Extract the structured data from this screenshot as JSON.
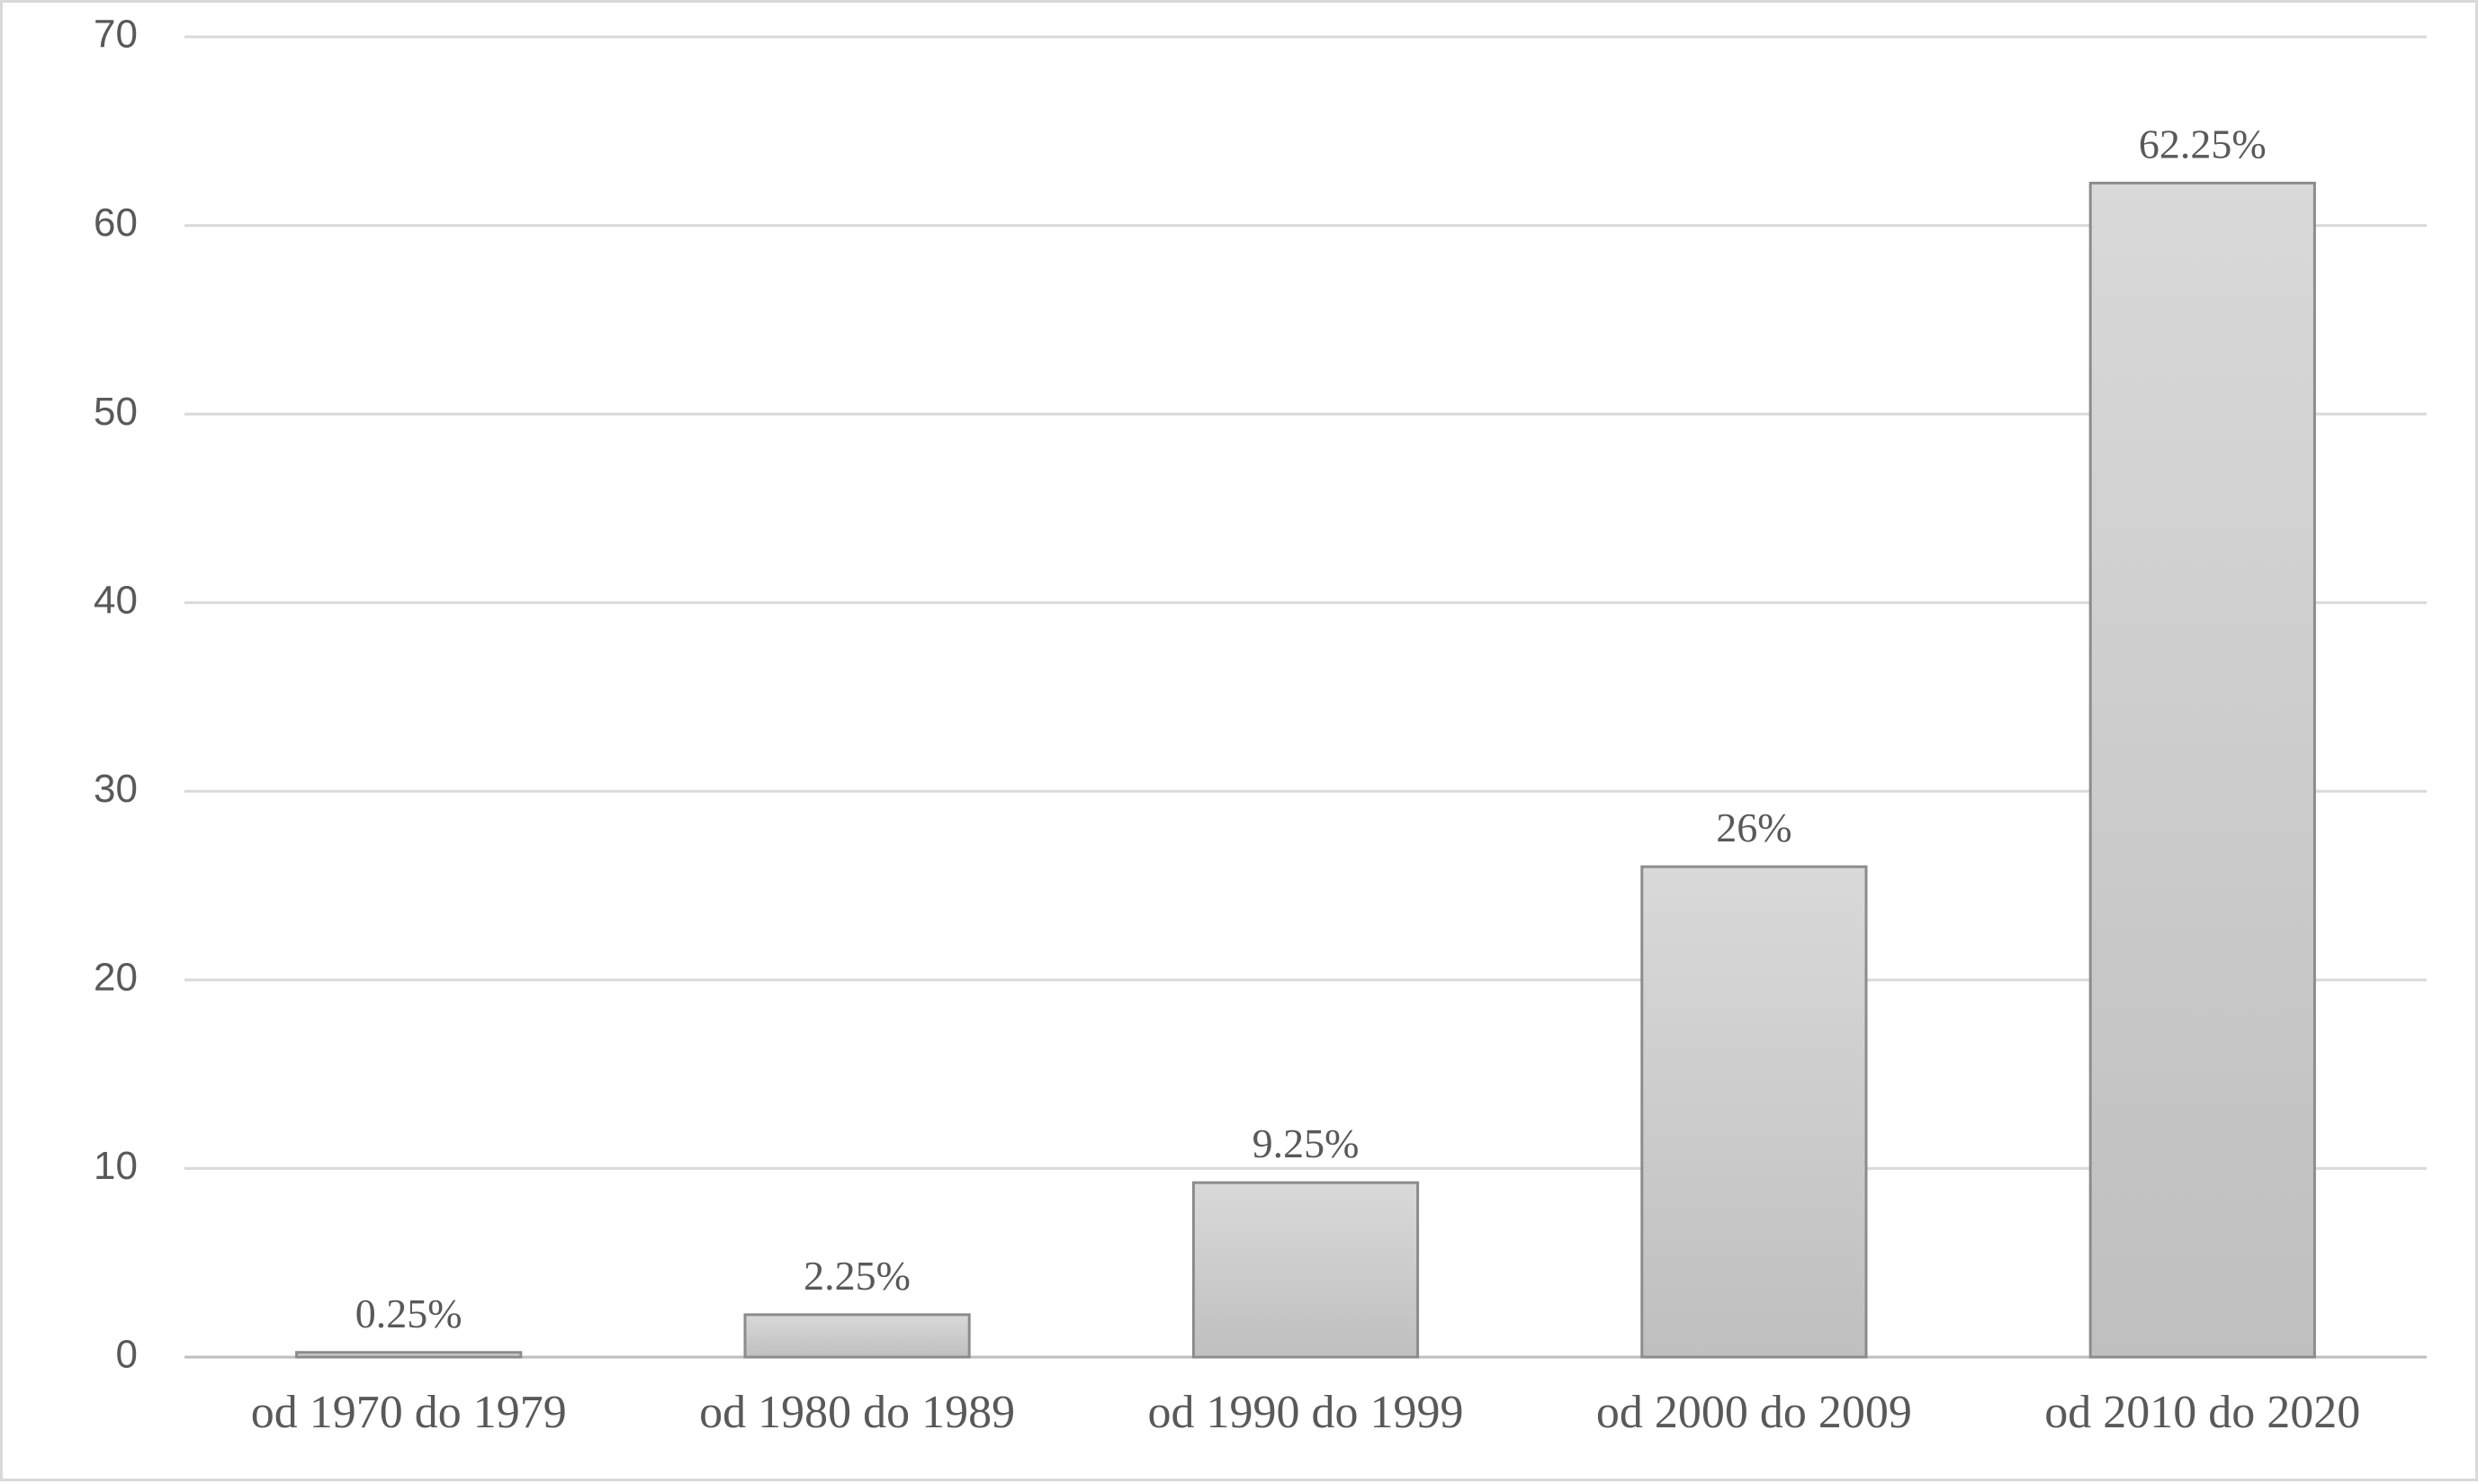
{
  "chart_data": {
    "type": "bar",
    "categories": [
      "od 1970 do 1979",
      "od 1980 do 1989",
      "od 1990 do 1999",
      "od 2000 do 2009",
      "od 2010 do 2020"
    ],
    "values": [
      0.25,
      2.25,
      9.25,
      26,
      62.25
    ],
    "data_labels": [
      "0.25%",
      "2.25%",
      "9.25%",
      "26%",
      "62.25%"
    ],
    "y_ticks": [
      "0",
      "10",
      "20",
      "30",
      "40",
      "50",
      "60",
      "70"
    ],
    "ylim": [
      0,
      70
    ],
    "grid": true,
    "legend": "none",
    "colors": {
      "bar_fill_top": "#d9d9d9",
      "bar_fill_bottom": "#bfbfbf",
      "bar_stroke": "#8c8c8c",
      "grid": "#d9d9d9",
      "text": "#595959"
    }
  }
}
